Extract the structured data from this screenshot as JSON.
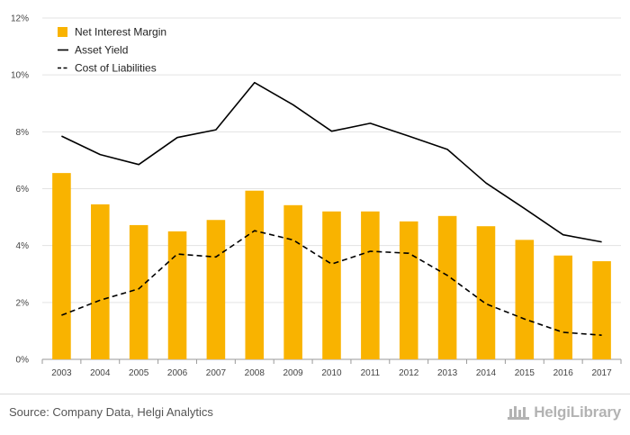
{
  "chart_data": {
    "type": "bar",
    "categories": [
      "2003",
      "2004",
      "2005",
      "2006",
      "2007",
      "2008",
      "2009",
      "2010",
      "2011",
      "2012",
      "2013",
      "2014",
      "2015",
      "2016",
      "2017"
    ],
    "y_ticks": [
      "0%",
      "2%",
      "4%",
      "6%",
      "8%",
      "10%",
      "12%"
    ],
    "ylim": [
      0,
      12
    ],
    "grid": true,
    "legend_position": "top-left",
    "series": [
      {
        "name": "Net Interest Margin",
        "type": "bar",
        "color": "#f9b300",
        "values": [
          6.55,
          5.45,
          4.72,
          4.5,
          4.9,
          5.93,
          5.42,
          5.2,
          5.2,
          4.85,
          5.04,
          4.68,
          4.2,
          3.65,
          3.45
        ]
      },
      {
        "name": "Asset Yield",
        "type": "line",
        "style": "solid",
        "color": "#000000",
        "values": [
          7.85,
          7.2,
          6.85,
          7.8,
          8.07,
          9.73,
          8.95,
          8.02,
          8.3,
          7.85,
          7.38,
          6.2,
          5.3,
          4.38,
          4.13
        ]
      },
      {
        "name": "Cost of Liabilities",
        "type": "line",
        "style": "dashed",
        "color": "#000000",
        "values": [
          1.55,
          2.08,
          2.48,
          3.7,
          3.6,
          4.52,
          4.2,
          3.35,
          3.8,
          3.73,
          2.95,
          1.95,
          1.42,
          0.95,
          0.85
        ]
      }
    ]
  },
  "footer": {
    "source": "Source: Company Data, Helgi Analytics",
    "brand": "HelgiLibrary"
  }
}
